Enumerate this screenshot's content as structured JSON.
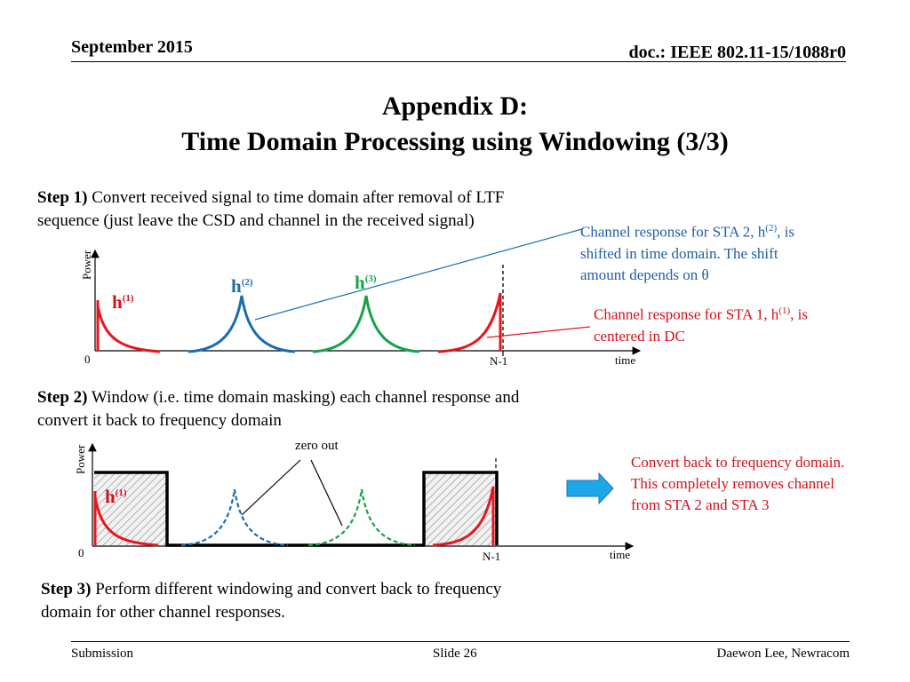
{
  "header": {
    "date": "September 2015",
    "doc": "doc.: IEEE 802.11-15/1088r0"
  },
  "title": {
    "line1": "Appendix D:",
    "line2": "Time Domain Processing using Windowing (3/3)"
  },
  "step1": {
    "label": "Step 1)",
    "text_line1": " Convert received signal to time domain after removal of LTF",
    "text_line2": "sequence (just leave the CSD and channel in the received signal)"
  },
  "note_sta2": {
    "line1_a": "Channel response for STA 2, h",
    "line1_sup": "(2)",
    "line1_b": ", is",
    "line2": "shifted in time domain. The shift",
    "line3": "amount depends on θ"
  },
  "note_sta1": {
    "line1_a": "Channel response for STA 1, h",
    "line1_sup": "(1)",
    "line1_b": ", is",
    "line2": "centered in DC"
  },
  "plot1": {
    "ylabel": "Power",
    "origin": "0",
    "n1": "N-1",
    "xlabel": "time",
    "h1": {
      "base": "h",
      "sup": "(1)"
    },
    "h2": {
      "base": "h",
      "sup": "(2)"
    },
    "h3": {
      "base": "h",
      "sup": "(3)"
    }
  },
  "step2": {
    "label": "Step 2)",
    "text_line1": " Window (i.e. time domain masking) each channel response and",
    "text_line2": "convert it back to frequency domain"
  },
  "plot2": {
    "ylabel": "Power",
    "origin": "0",
    "n1": "N-1",
    "xlabel": "time",
    "zero_out": "zero out",
    "h1": {
      "base": "h",
      "sup": "(1)"
    }
  },
  "note_convert": {
    "line1": "Convert back to frequency domain.",
    "line2": "This completely removes channel",
    "line3": "from STA 2 and STA 3"
  },
  "step3": {
    "label": "Step 3)",
    "text_line1": " Perform different windowing and convert back to frequency",
    "text_line2": "domain for other channel responses."
  },
  "footer": {
    "left": "Submission",
    "center": "Slide 26",
    "right": "Daewon Lee, Newracom"
  },
  "colors": {
    "red": "#e8151c",
    "blue": "#1b6db3",
    "green": "#17a24a",
    "arrow": "#1ea7e8"
  }
}
